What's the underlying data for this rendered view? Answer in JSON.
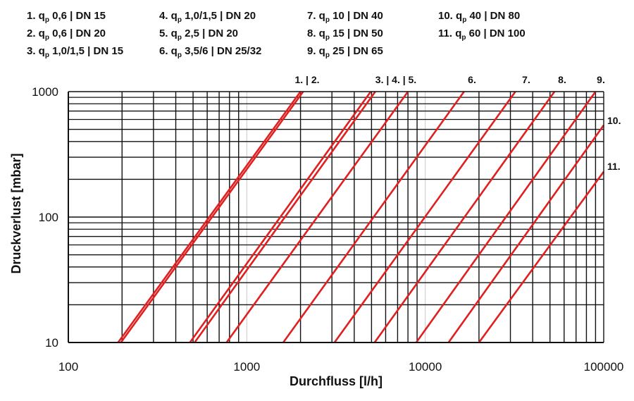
{
  "chart_data": {
    "type": "line",
    "title": "",
    "xlabel": "Durchfluss [l/h]",
    "ylabel": "Druckverlust [mbar]",
    "xscale": "log",
    "yscale": "log",
    "xlim": [
      100,
      100000
    ],
    "ylim": [
      10,
      1000
    ],
    "x_ticks": [
      "100",
      "1000",
      "10000",
      "100000"
    ],
    "y_ticks": [
      "10",
      "100",
      "1000"
    ],
    "grid": true,
    "line_color": "#e02020",
    "legend": [
      {
        "num": "1.",
        "pre": "q",
        "sub": "p",
        "post": "0,6 | DN 15"
      },
      {
        "num": "2.",
        "pre": "q",
        "sub": "p",
        "post": "0,6 | DN 20"
      },
      {
        "num": "3.",
        "pre": "q",
        "sub": "p",
        "post": "1,0/1,5 | DN 15"
      },
      {
        "num": "4.",
        "pre": "q",
        "sub": "p",
        "post": "1,0/1,5 | DN 20"
      },
      {
        "num": "5.",
        "pre": "q",
        "sub": "p",
        "post": "2,5 | DN 20"
      },
      {
        "num": "6.",
        "pre": "q",
        "sub": "p",
        "post": "3,5/6 | DN 25/32"
      },
      {
        "num": "7.",
        "pre": "q",
        "sub": "p",
        "post": "10 | DN 40"
      },
      {
        "num": "8.",
        "pre": "q",
        "sub": "p",
        "post": "15 | DN 50"
      },
      {
        "num": "9.",
        "pre": "q",
        "sub": "p",
        "post": "25 | DN 65"
      },
      {
        "num": "10.",
        "pre": "q",
        "sub": "p",
        "post": "40 | DN 80"
      },
      {
        "num": "11.",
        "pre": "q",
        "sub": "p",
        "post": "60 | DN 100"
      }
    ],
    "line_labels": [
      "1. | 2.",
      "3. | 4. | 5.",
      "6.",
      "7.",
      "8.",
      "9.",
      "10.",
      "11."
    ],
    "series": [
      {
        "id": "1",
        "points": [
          [
            190,
            10
          ],
          [
            2000,
            1000
          ]
        ]
      },
      {
        "id": "2",
        "points": [
          [
            197,
            10
          ],
          [
            2070,
            1000
          ]
        ]
      },
      {
        "id": "3",
        "points": [
          [
            480,
            10
          ],
          [
            4950,
            1000
          ]
        ]
      },
      {
        "id": "4",
        "points": [
          [
            510,
            10
          ],
          [
            5250,
            1000
          ]
        ]
      },
      {
        "id": "5",
        "points": [
          [
            770,
            10
          ],
          [
            8000,
            1000
          ]
        ]
      },
      {
        "id": "6",
        "points": [
          [
            1600,
            10
          ],
          [
            16500,
            1000
          ]
        ]
      },
      {
        "id": "7",
        "points": [
          [
            3100,
            10
          ],
          [
            32000,
            1000
          ]
        ]
      },
      {
        "id": "8",
        "points": [
          [
            5200,
            10
          ],
          [
            53000,
            1000
          ]
        ]
      },
      {
        "id": "9",
        "points": [
          [
            8900,
            10
          ],
          [
            90000,
            1000
          ]
        ]
      },
      {
        "id": "10",
        "points": [
          [
            13500,
            10
          ],
          [
            100000,
            540
          ]
        ]
      },
      {
        "id": "11",
        "points": [
          [
            20000,
            10
          ],
          [
            100000,
            230
          ]
        ]
      }
    ]
  }
}
